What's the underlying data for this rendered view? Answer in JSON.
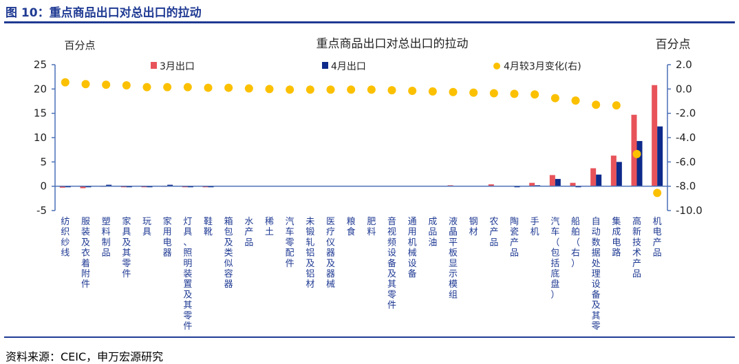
{
  "figure_title": "图 10：重点商品出口对总出口的拉动",
  "source": "资料来源：CEIC，申万宏源研究",
  "chart_data": {
    "type": "bar",
    "title": "重点商品出口对总出口的拉动",
    "ylabel": "百分点",
    "y2label": "百分点",
    "ylim": [
      -5,
      25
    ],
    "yticks": [
      "25",
      "20",
      "15",
      "10",
      "5",
      "0",
      "-5"
    ],
    "y2lim": [
      -10,
      2
    ],
    "y2ticks": [
      "2.0",
      "0.0",
      "-2.0",
      "-4.0",
      "-6.0",
      "-8.0",
      "-10.0"
    ],
    "legend_position": "top",
    "colors": {
      "march": "#e8535a",
      "april": "#0e2a8a",
      "change": "#fbc000",
      "axis": "#4a6fb5"
    },
    "categories": [
      "纺织纱线",
      "服装及衣着附件",
      "塑料制品",
      "家具及其零件",
      "玩具",
      "家用电器",
      "灯具、照明装置及其零件",
      "鞋靴",
      "箱包及类似容器",
      "水产品",
      "稀土",
      "汽车零配件",
      "未锻轧铝及铝材",
      "医疗仪器及器械",
      "粮食",
      "肥料",
      "音视频设备及其零件",
      "通用机械设备",
      "成品油",
      "液晶平板显示模组",
      "钢材",
      "农产品",
      "陶瓷产品",
      "手机",
      "汽车（包括底盘）",
      "船舶（右）",
      "自动数据处理设备及其零部件",
      "集成电路",
      "高新技术产品",
      "机电产品"
    ],
    "category_labels": [
      "纺织纱线",
      "服装及衣着附件",
      "塑料制品",
      "家具及其零件",
      "玩具",
      "家用电器",
      "灯具、照明装置及其零件",
      "鞋靴",
      "箱包及类似容器",
      "水产品",
      "稀土",
      "汽车零配件",
      "未锻轧铝及铝材",
      "医疗仪器及器械",
      "粮食",
      "肥料",
      "音视频设备及其零件",
      "通用机械设备",
      "成品油",
      "液晶平板显示模组",
      "钢材",
      "农产品",
      "陶瓷产品",
      "手机",
      "汽车（包括底盘）",
      "船舶（右）",
      "自动数据处理设备及其零",
      "集成电路",
      "高新技术产品",
      "机电产品"
    ],
    "series": [
      {
        "name": "3月出口",
        "axis": "left",
        "kind": "bar",
        "values": [
          -0.3,
          -0.4,
          0.1,
          -0.2,
          -0.1,
          0.1,
          -0.2,
          -0.1,
          0,
          0,
          0,
          0,
          0,
          0,
          0,
          0,
          0,
          0,
          0,
          0.2,
          0,
          0.4,
          0,
          0.7,
          2.3,
          0.7,
          3.7,
          6.3,
          14.7,
          20.8
        ]
      },
      {
        "name": "4月出口",
        "axis": "left",
        "kind": "bar",
        "values": [
          -0.1,
          -0.1,
          0.3,
          -0.1,
          -0.1,
          0.3,
          -0.1,
          -0.1,
          0,
          0,
          0,
          0,
          0,
          0,
          0,
          0,
          0,
          0,
          0,
          0,
          0,
          0,
          -0.1,
          0.2,
          1.5,
          -0.2,
          2.4,
          5,
          9.3,
          12.3
        ]
      },
      {
        "name": "4月较3月变化(右)",
        "axis": "right",
        "kind": "scatter",
        "values": [
          0.55,
          0.4,
          0.35,
          0.3,
          0.15,
          0.15,
          0.15,
          0.1,
          0.1,
          0.05,
          0.0,
          -0.05,
          -0.05,
          -0.05,
          -0.05,
          -0.05,
          -0.1,
          -0.15,
          -0.2,
          -0.25,
          -0.3,
          -0.35,
          -0.4,
          -0.45,
          -0.75,
          -0.95,
          -1.3,
          -1.35,
          -5.35,
          -8.55
        ]
      }
    ]
  }
}
